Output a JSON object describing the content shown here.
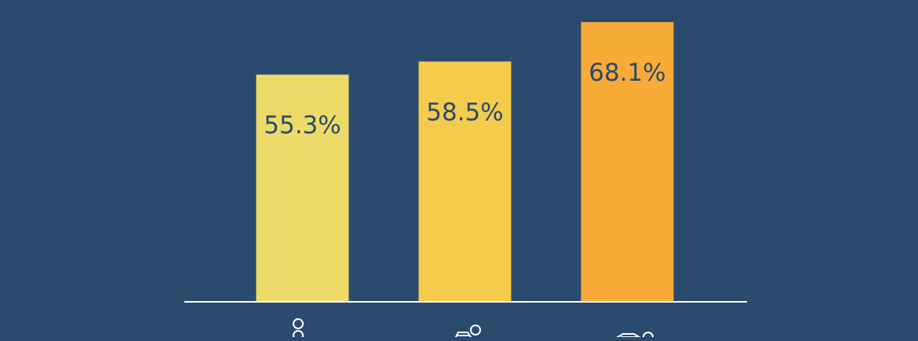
{
  "chart_data": {
    "type": "bar",
    "categories": [
      "",
      "",
      ""
    ],
    "values": [
      55.3,
      58.5,
      68.1
    ],
    "value_labels": [
      "55.3%",
      "58.5%",
      "68.1%"
    ],
    "title": "",
    "xlabel": "",
    "ylabel": "",
    "ylim": [
      0,
      70
    ],
    "grid": false,
    "legend": "none",
    "colors": [
      "#eddb69",
      "#f5cb4c",
      "#f9ab38"
    ],
    "background": "#2a4a6e",
    "label_color": "#2a4a6e",
    "axis_color": "#ffffff",
    "category_icons": [
      "person-icon",
      "person-with-pram-icon",
      "person-with-hands-icon"
    ]
  }
}
